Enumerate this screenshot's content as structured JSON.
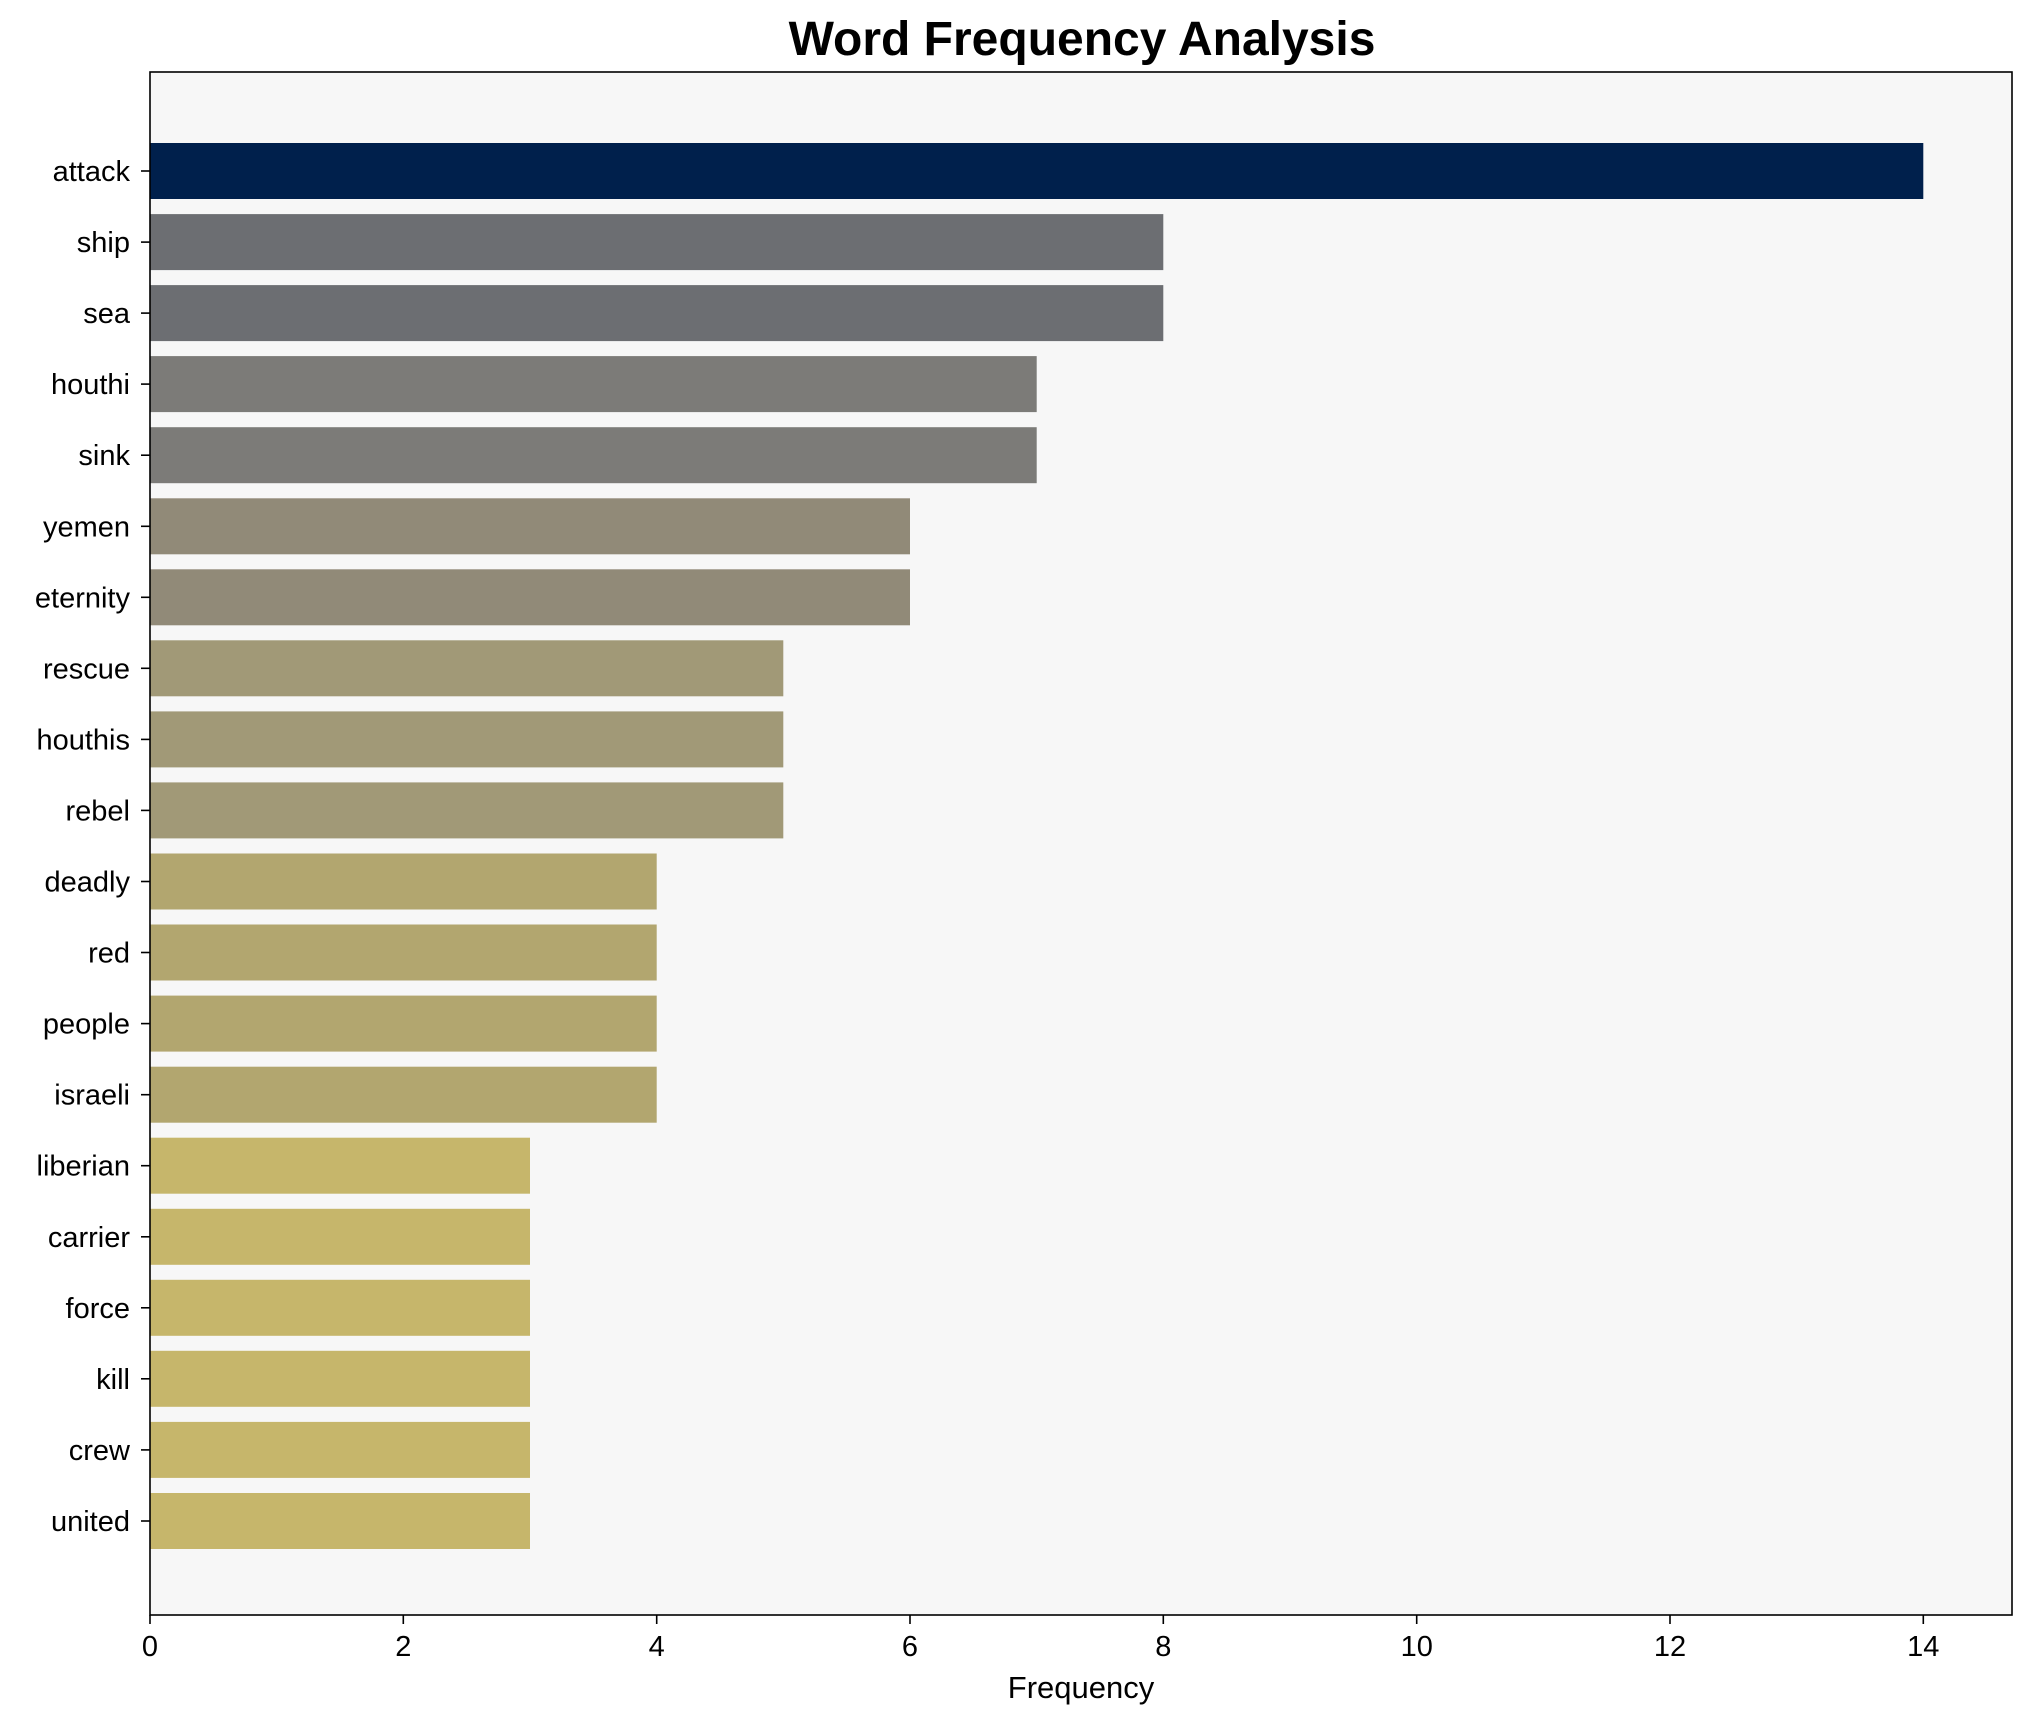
{
  "chart_data": {
    "type": "bar",
    "orientation": "horizontal",
    "title": "Word Frequency Analysis",
    "xlabel": "Frequency",
    "ylabel": "",
    "xlim": [
      0,
      14.7
    ],
    "xticks": [
      0,
      2,
      4,
      6,
      8,
      10,
      12,
      14
    ],
    "grid": false,
    "plot_background": "#f7f7f7",
    "categories": [
      "attack",
      "ship",
      "sea",
      "houthi",
      "sink",
      "yemen",
      "eternity",
      "rescue",
      "houthis",
      "rebel",
      "deadly",
      "red",
      "people",
      "israeli",
      "liberian",
      "carrier",
      "force",
      "kill",
      "crew",
      "united"
    ],
    "values": [
      14,
      8,
      8,
      7,
      7,
      6,
      6,
      5,
      5,
      5,
      4,
      4,
      4,
      4,
      3,
      3,
      3,
      3,
      3,
      3
    ],
    "colors": [
      "#00204c",
      "#6c6e72",
      "#6c6e72",
      "#7c7b78",
      "#7c7b78",
      "#918a78",
      "#918a78",
      "#a19977",
      "#a19977",
      "#a19977",
      "#b2a66f",
      "#b2a66f",
      "#b2a66f",
      "#b2a66f",
      "#c6b66b",
      "#c6b66b",
      "#c6b66b",
      "#c6b66b",
      "#c6b66b",
      "#c6b66b"
    ]
  }
}
